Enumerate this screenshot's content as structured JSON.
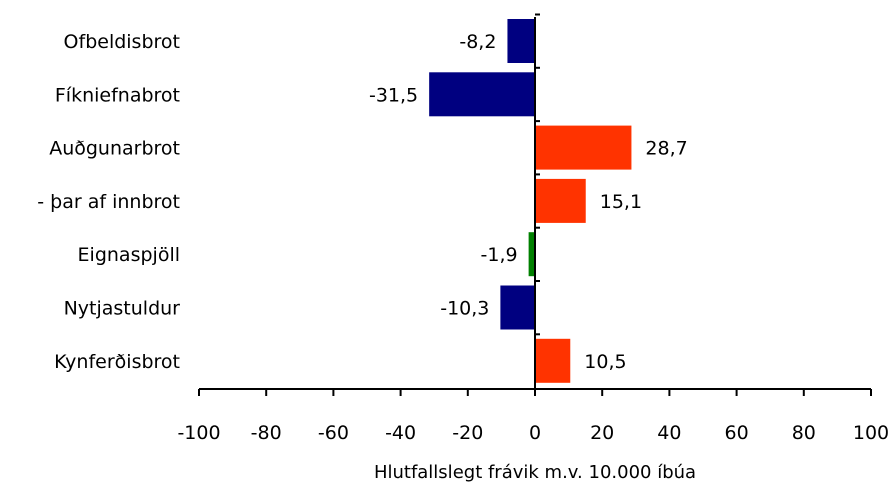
{
  "chart_data": {
    "type": "bar",
    "orientation": "horizontal",
    "title": "",
    "xlabel": "Hlutfallslegt frávik m.v. 10.000 íbúa",
    "ylabel": "",
    "xlim": [
      -100,
      100
    ],
    "xticks": [
      "-100",
      "-80",
      "-60",
      "-40",
      "-20",
      "0",
      "20",
      "40",
      "60",
      "80",
      "100"
    ],
    "grid": false,
    "legend": "none",
    "categories": [
      "Ofbeldisbrot",
      "Fíkniefnabrot",
      "Auðgunarbrot",
      "- þar af innbrot",
      "Eignaspjöll",
      "Nytjastuldur",
      "Kynferðisbrot"
    ],
    "values": [
      -8.2,
      -31.5,
      28.7,
      15.1,
      -1.9,
      -10.3,
      10.5
    ],
    "value_labels": [
      "-8,2",
      "-31,5",
      "28,7",
      "15,1",
      "-1,9",
      "-10,3",
      "10,5"
    ],
    "bar_colors": [
      "#000080",
      "#000080",
      "#ff3300",
      "#ff3300",
      "#008000",
      "#000080",
      "#ff3300"
    ]
  }
}
